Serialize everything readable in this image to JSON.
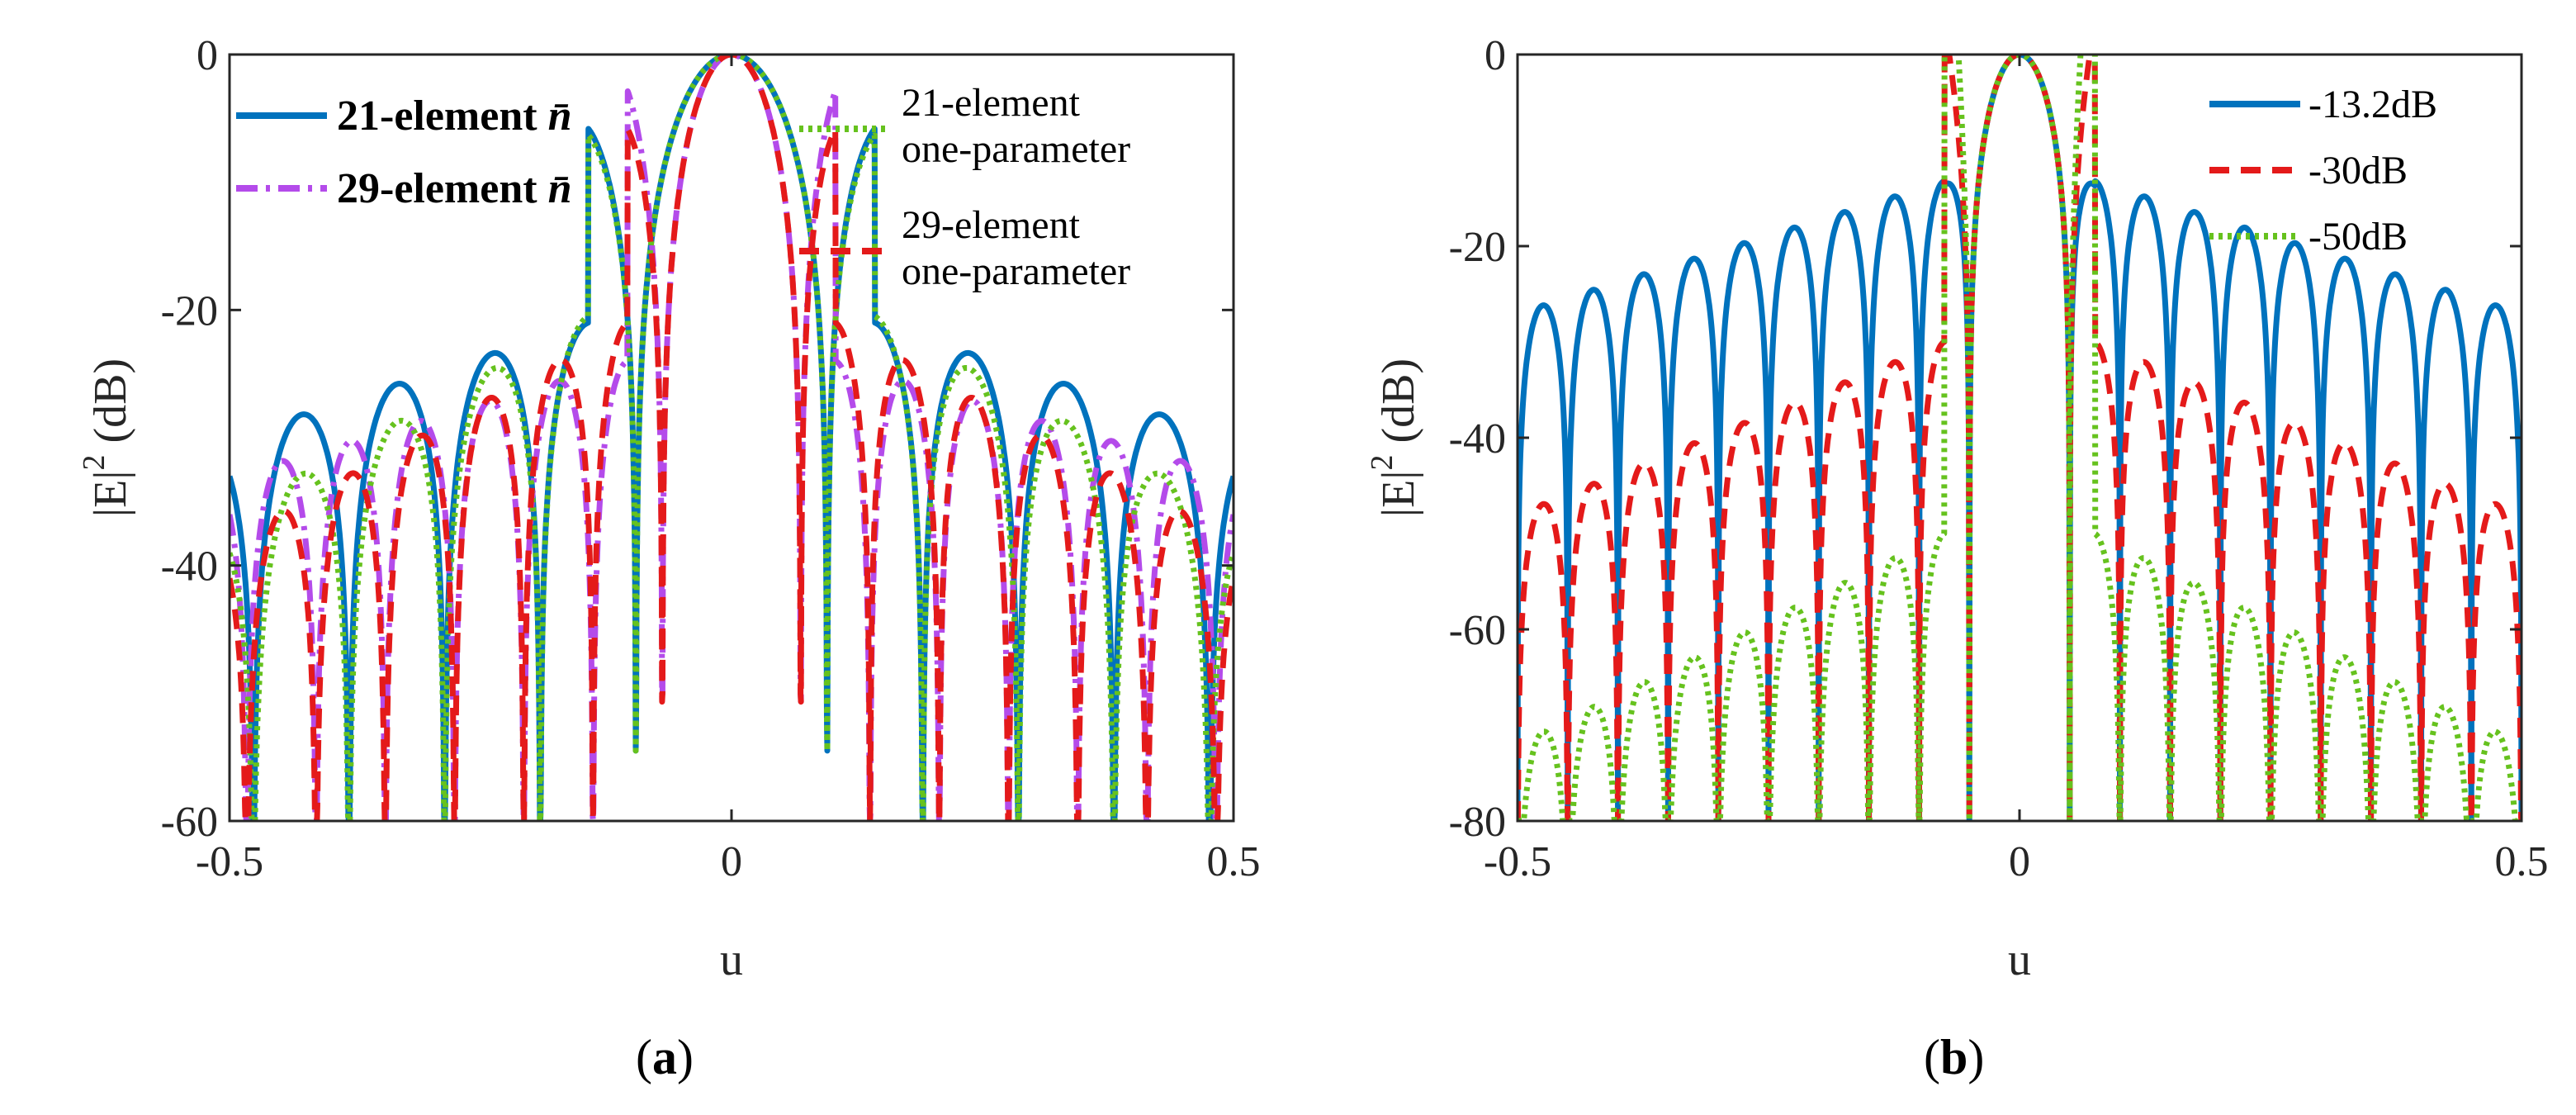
{
  "chart_data": [
    {
      "type": "line",
      "panel": "a",
      "caption_open": "(",
      "caption_letter": "a",
      "caption_close": ")",
      "xlabel": "u",
      "ylabel_main": "|E|",
      "ylabel_sup": "2",
      "ylabel_unit": " (dB)",
      "xlim": [
        -0.5,
        0.5
      ],
      "ylim": [
        -60,
        0
      ],
      "xticks": [
        -0.5,
        0,
        0.5
      ],
      "xtick_labels": [
        "-0.5",
        "0",
        "0.5"
      ],
      "yticks": [
        0,
        -20,
        -40,
        -60
      ],
      "ytick_labels": [
        "0",
        "-20",
        "-40",
        "-60"
      ],
      "legend_position": "top",
      "series": [
        {
          "name": "21-element",
          "name_suffix": "n̄",
          "color": "#0072BD",
          "dash": "solid",
          "N": 21,
          "sidelobe_db": -21,
          "far_db": -30,
          "floor_db": -60
        },
        {
          "name": "29-element",
          "name_suffix": "n̄",
          "color": "#B44BEA",
          "dash": "dashdot",
          "N": 29,
          "sidelobe_db": -24,
          "far_db": -33,
          "floor_db": -60
        },
        {
          "name": "21-element",
          "name_line2": "one-parameter",
          "color": "#66C21E",
          "dash": "dotted",
          "N": 21,
          "sidelobe_db": -20.5,
          "far_db": -36,
          "floor_db": -60
        },
        {
          "name": "29-element",
          "name_line2": "one-parameter",
          "color": "#E41A1A",
          "dash": "dashed",
          "N": 29,
          "sidelobe_db": -21,
          "far_db": -38,
          "floor_db": -60
        }
      ]
    },
    {
      "type": "line",
      "panel": "b",
      "caption_open": "(",
      "caption_letter": "b",
      "caption_close": ")",
      "xlabel": "u",
      "ylabel_main": "|E|",
      "ylabel_sup": "2",
      "ylabel_unit": " (dB)",
      "xlim": [
        -0.5,
        0.5
      ],
      "ylim": [
        -80,
        0
      ],
      "xticks": [
        -0.5,
        0,
        0.5
      ],
      "xtick_labels": [
        "-0.5",
        "0",
        "0.5"
      ],
      "yticks": [
        0,
        -20,
        -40,
        -60,
        -80
      ],
      "ytick_labels": [
        "0",
        "-20",
        "-40",
        "-60",
        "-80"
      ],
      "legend_position": "top-right",
      "series": [
        {
          "name": "-13.2dB",
          "color": "#0072BD",
          "dash": "solid",
          "N": 40,
          "sidelobe_db": -13.2,
          "far_db": -27,
          "floor_db": -80
        },
        {
          "name": "-30dB",
          "color": "#E41A1A",
          "dash": "dashed",
          "N": 40,
          "sidelobe_db": -30,
          "far_db": -48,
          "floor_db": -80
        },
        {
          "name": "-50dB",
          "color": "#66C21E",
          "dash": "dotted",
          "N": 40,
          "sidelobe_db": -50,
          "far_db": -72,
          "floor_db": -80
        }
      ]
    }
  ]
}
